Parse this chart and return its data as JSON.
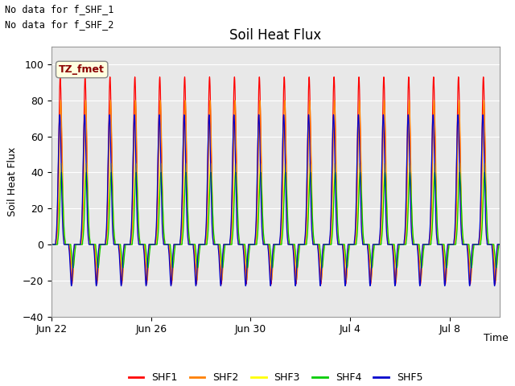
{
  "title": "Soil Heat Flux",
  "ylabel": "Soil Heat Flux",
  "xlabel": "Time",
  "annotation_line1": "No data for f_SHF_1",
  "annotation_line2": "No data for f_SHF_2",
  "box_label": "TZ_fmet",
  "ylim": [
    -40,
    110
  ],
  "yticks": [
    -40,
    -20,
    0,
    20,
    40,
    60,
    80,
    100
  ],
  "series_colors": {
    "SHF1": "#ff0000",
    "SHF2": "#ff8000",
    "SHF3": "#ffff00",
    "SHF4": "#00cc00",
    "SHF5": "#0000cc"
  },
  "legend_labels": [
    "SHF1",
    "SHF2",
    "SHF3",
    "SHF4",
    "SHF5"
  ],
  "plot_bg_color": "#e8e8e8",
  "title_fontsize": 12,
  "axis_fontsize": 9,
  "tick_fontsize": 9,
  "start_day": 173,
  "end_day": 191,
  "num_points": 8000,
  "shf1_amp": 93,
  "shf1_neg": 22,
  "shf2_amp": 80,
  "shf2_neg": 20,
  "shf3_amp": 45,
  "shf3_neg": 13,
  "shf4_amp": 40,
  "shf4_neg": 13,
  "shf5_amp": 72,
  "shf5_neg": 23
}
